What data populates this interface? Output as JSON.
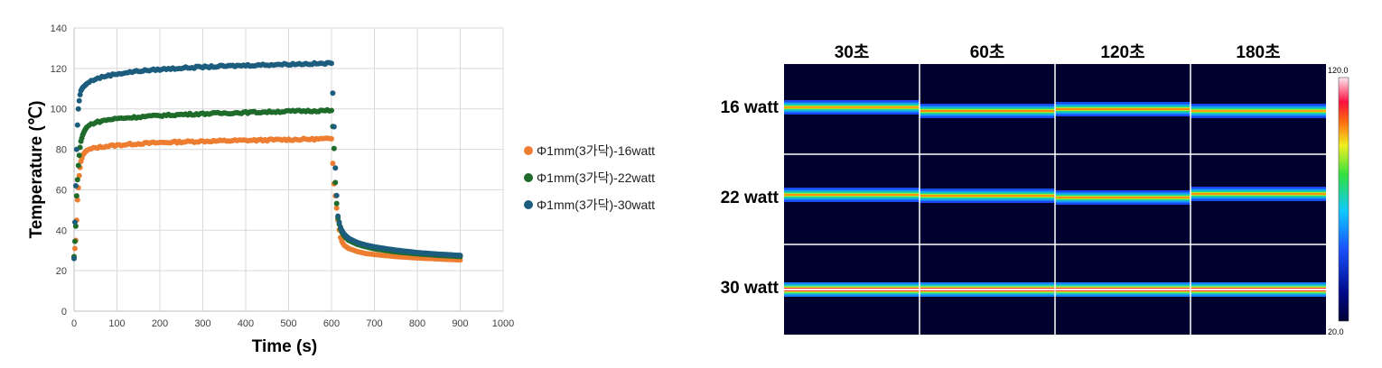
{
  "chart_data": [
    {
      "type": "scatter",
      "title": "",
      "xlabel": "Time (s)",
      "ylabel": "Temperature (℃)",
      "xlim": [
        0,
        1000
      ],
      "ylim": [
        0,
        140
      ],
      "x_ticks": [
        0,
        100,
        200,
        300,
        400,
        500,
        600,
        700,
        800,
        900,
        1000
      ],
      "y_ticks": [
        0,
        20,
        40,
        60,
        80,
        100,
        120,
        140
      ],
      "grid": true,
      "legend_position": "right",
      "series": [
        {
          "name": "Φ1mm(3가닥)-16watt",
          "color": "#ed7d31",
          "points": [
            [
              0,
              27
            ],
            [
              4,
              35
            ],
            [
              6,
              45
            ],
            [
              8,
              55
            ],
            [
              10,
              61
            ],
            [
              12,
              67
            ],
            [
              14,
              71
            ],
            [
              16,
              74
            ],
            [
              20,
              77
            ],
            [
              25,
              78.5
            ],
            [
              30,
              79.5
            ],
            [
              40,
              80.2
            ],
            [
              50,
              80.8
            ],
            [
              75,
              81.5
            ],
            [
              100,
              82
            ],
            [
              150,
              82.8
            ],
            [
              200,
              83.3
            ],
            [
              250,
              83.7
            ],
            [
              300,
              84
            ],
            [
              350,
              84.2
            ],
            [
              400,
              84.4
            ],
            [
              450,
              84.6
            ],
            [
              500,
              84.8
            ],
            [
              550,
              85
            ],
            [
              600,
              85.2
            ],
            [
              605,
              65
            ],
            [
              610,
              55
            ],
            [
              615,
              45
            ],
            [
              620,
              37
            ],
            [
              625,
              34
            ],
            [
              630,
              32.5
            ],
            [
              640,
              31
            ],
            [
              660,
              29.5
            ],
            [
              680,
              28.5
            ],
            [
              700,
              28
            ],
            [
              750,
              27
            ],
            [
              800,
              26.3
            ],
            [
              850,
              25.8
            ],
            [
              900,
              25.3
            ]
          ]
        },
        {
          "name": "Φ1mm(3가닥)-22watt",
          "color": "#1e6b2a",
          "points": [
            [
              0,
              27
            ],
            [
              4,
              42
            ],
            [
              6,
              57
            ],
            [
              8,
              65
            ],
            [
              10,
              72
            ],
            [
              12,
              77
            ],
            [
              14,
              81
            ],
            [
              16,
              84
            ],
            [
              20,
              87
            ],
            [
              25,
              89.5
            ],
            [
              30,
              91
            ],
            [
              40,
              92.5
            ],
            [
              50,
              93.3
            ],
            [
              75,
              94.5
            ],
            [
              100,
              95.2
            ],
            [
              150,
              96
            ],
            [
              200,
              96.7
            ],
            [
              250,
              97.2
            ],
            [
              300,
              97.6
            ],
            [
              350,
              97.9
            ],
            [
              400,
              98.2
            ],
            [
              450,
              98.5
            ],
            [
              500,
              98.8
            ],
            [
              550,
              99
            ],
            [
              600,
              99.2
            ],
            [
              605,
              86
            ],
            [
              610,
              58
            ],
            [
              615,
              46
            ],
            [
              620,
              41
            ],
            [
              625,
              38.5
            ],
            [
              630,
              37
            ],
            [
              640,
              35
            ],
            [
              660,
              33
            ],
            [
              680,
              31.8
            ],
            [
              700,
              30.8
            ],
            [
              750,
              29.3
            ],
            [
              800,
              28.3
            ],
            [
              850,
              27.6
            ],
            [
              900,
              27
            ]
          ]
        },
        {
          "name": "Φ1mm(3가닥)-30watt",
          "color": "#1c5d7e",
          "points": [
            [
              0,
              26
            ],
            [
              4,
              62
            ],
            [
              6,
              80
            ],
            [
              8,
              92
            ],
            [
              10,
              100
            ],
            [
              12,
              104
            ],
            [
              14,
              107
            ],
            [
              16,
              109
            ],
            [
              20,
              110.5
            ],
            [
              25,
              111.5
            ],
            [
              30,
              112.5
            ],
            [
              40,
              113.8
            ],
            [
              50,
              114.8
            ],
            [
              75,
              116.3
            ],
            [
              100,
              117.3
            ],
            [
              150,
              118.7
            ],
            [
              200,
              119.5
            ],
            [
              250,
              120.2
            ],
            [
              300,
              120.7
            ],
            [
              350,
              121.1
            ],
            [
              400,
              121.5
            ],
            [
              450,
              121.8
            ],
            [
              500,
              122.1
            ],
            [
              550,
              122.3
            ],
            [
              600,
              122.5
            ],
            [
              605,
              98
            ],
            [
              610,
              64
            ],
            [
              615,
              47
            ],
            [
              620,
              42
            ],
            [
              625,
              39.5
            ],
            [
              630,
              38
            ],
            [
              640,
              36
            ],
            [
              660,
              34
            ],
            [
              680,
              32.7
            ],
            [
              700,
              31.8
            ],
            [
              750,
              30.2
            ],
            [
              800,
              29
            ],
            [
              850,
              28.2
            ],
            [
              900,
              27.6
            ]
          ]
        }
      ]
    },
    {
      "type": "heatmap",
      "columns": [
        "30초",
        "60초",
        "120초",
        "180초"
      ],
      "rows": [
        "16 watt",
        "22 watt",
        "30 watt"
      ],
      "colorbar": {
        "max_label": "120.0",
        "min_label": "20.0",
        "min": 20,
        "max": 120
      },
      "cell_peak_temperature": [
        [
          98,
          100,
          100,
          98
        ],
        [
          99,
          99,
          99,
          99
        ],
        [
          122,
          122,
          122,
          122
        ]
      ]
    }
  ]
}
